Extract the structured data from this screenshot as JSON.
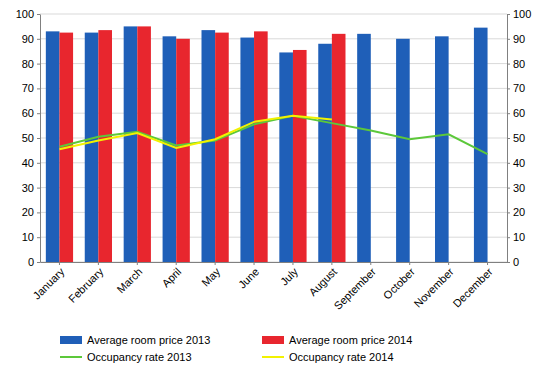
{
  "chart_data": {
    "type": "bar",
    "categories": [
      "January",
      "February",
      "March",
      "April",
      "May",
      "June",
      "July",
      "August",
      "September",
      "October",
      "November",
      "December"
    ],
    "series": [
      {
        "name": "Average room price 2013",
        "type": "bar",
        "color": "#1f5fb8",
        "values": [
          93,
          92.5,
          95,
          91,
          93.5,
          90.5,
          84.5,
          88,
          92,
          90,
          91,
          94.5
        ]
      },
      {
        "name": "Average room price 2014",
        "type": "bar",
        "color": "#e8262e",
        "values": [
          92.5,
          93.5,
          95,
          90,
          92.5,
          93,
          85.5,
          92,
          null,
          null,
          null,
          null
        ]
      },
      {
        "name": "Occupancy rate 2013",
        "type": "line",
        "axis": "y2",
        "color": "#5cc83a",
        "values": [
          46.5,
          50.5,
          52.5,
          47,
          49,
          55.5,
          59,
          56,
          53,
          49.5,
          51.5,
          43.5
        ]
      },
      {
        "name": "Occupancy rate 2014",
        "type": "line",
        "axis": "y2",
        "color": "#f2f200",
        "values": [
          45.5,
          49,
          52,
          46,
          49.5,
          56.5,
          59,
          57.5,
          null,
          null,
          null,
          null
        ]
      }
    ],
    "ylim": [
      0,
      100
    ],
    "yticks": [
      0,
      10,
      20,
      30,
      40,
      50,
      60,
      70,
      80,
      90,
      100
    ],
    "y2lim": [
      0,
      100
    ],
    "y2ticks": [
      0,
      10,
      20,
      30,
      40,
      50,
      60,
      70,
      80,
      90,
      100
    ],
    "grid": true,
    "legend": "bottom"
  }
}
